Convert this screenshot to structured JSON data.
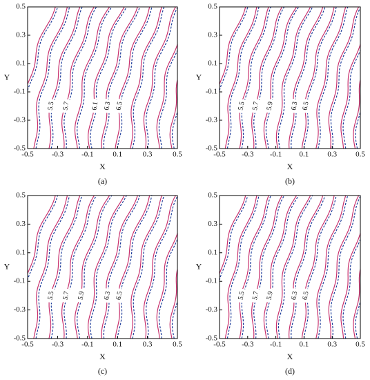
{
  "chart_data": [
    {
      "type": "contour",
      "caption": "(a)",
      "xlabel": "X",
      "ylabel": "Y",
      "xlim": [
        -0.5,
        0.5
      ],
      "ylim": [
        -0.5,
        0.5
      ],
      "xticks": [
        -0.5,
        -0.3,
        -0.1,
        0.1,
        0.3,
        0.5
      ],
      "yticks": [
        -0.5,
        -0.3,
        -0.1,
        0.1,
        0.3,
        0.5
      ],
      "series": [
        {
          "color": "#c8326e",
          "style": "solid",
          "levels": [
            5.1,
            5.3,
            5.5,
            5.7,
            5.9,
            6.1,
            6.3,
            6.5,
            6.7,
            6.9,
            7.1,
            7.3
          ]
        },
        {
          "color": "#1e3c9a",
          "style": "dashed",
          "levels": [
            5.1,
            5.3,
            5.5,
            5.7,
            5.9,
            6.1,
            6.3,
            6.5,
            6.7,
            6.9,
            7.1,
            7.3
          ]
        }
      ],
      "contour_labels": [
        5.5,
        5.7,
        6.1,
        6.3,
        6.5
      ]
    },
    {
      "type": "contour",
      "caption": "(b)",
      "xlabel": "X",
      "ylabel": "Y",
      "xlim": [
        -0.5,
        0.5
      ],
      "ylim": [
        -0.5,
        0.5
      ],
      "xticks": [
        -0.5,
        -0.3,
        -0.1,
        0.1,
        0.3,
        0.5
      ],
      "yticks": [
        -0.5,
        -0.3,
        -0.1,
        0.1,
        0.3,
        0.5
      ],
      "series": [
        {
          "color": "#c8326e",
          "style": "solid",
          "levels": [
            5.1,
            5.3,
            5.5,
            5.7,
            5.9,
            6.1,
            6.3,
            6.5,
            6.7,
            6.9,
            7.1,
            7.3
          ]
        },
        {
          "color": "#1e3c9a",
          "style": "dashed",
          "levels": [
            5.1,
            5.3,
            5.5,
            5.7,
            5.9,
            6.1,
            6.3,
            6.5,
            6.7,
            6.9,
            7.1,
            7.3
          ]
        }
      ],
      "contour_labels": [
        5.5,
        5.7,
        5.9,
        6.3,
        6.5
      ]
    },
    {
      "type": "contour",
      "caption": "(c)",
      "xlabel": "X",
      "ylabel": "Y",
      "xlim": [
        -0.5,
        0.5
      ],
      "ylim": [
        -0.5,
        0.5
      ],
      "xticks": [
        -0.5,
        -0.3,
        -0.1,
        0.1,
        0.3,
        0.5
      ],
      "yticks": [
        -0.5,
        -0.3,
        -0.1,
        0.1,
        0.3,
        0.5
      ],
      "series": [
        {
          "color": "#c8326e",
          "style": "solid",
          "levels": [
            5.1,
            5.3,
            5.5,
            5.7,
            5.9,
            6.1,
            6.3,
            6.5,
            6.7,
            6.9,
            7.1,
            7.3
          ]
        },
        {
          "color": "#1e3c9a",
          "style": "dashed",
          "levels": [
            5.1,
            5.3,
            5.5,
            5.7,
            5.9,
            6.1,
            6.3,
            6.5,
            6.7,
            6.9,
            7.1,
            7.3
          ]
        }
      ],
      "contour_labels": [
        5.5,
        5.7,
        5.9,
        6.3,
        6.5
      ]
    },
    {
      "type": "contour",
      "caption": "(d)",
      "xlabel": "X",
      "ylabel": "Y",
      "xlim": [
        -0.5,
        0.5
      ],
      "ylim": [
        -0.5,
        0.5
      ],
      "xticks": [
        -0.5,
        -0.3,
        -0.1,
        0.1,
        0.3,
        0.5
      ],
      "yticks": [
        -0.5,
        -0.3,
        -0.1,
        0.1,
        0.3,
        0.5
      ],
      "series": [
        {
          "color": "#c8326e",
          "style": "solid",
          "levels": [
            5.1,
            5.3,
            5.5,
            5.7,
            5.9,
            6.1,
            6.3,
            6.5,
            6.7,
            6.9,
            7.1,
            7.3
          ]
        },
        {
          "color": "#1e3c9a",
          "style": "dashed",
          "levels": [
            5.1,
            5.3,
            5.5,
            5.7,
            5.9,
            6.1,
            6.3,
            6.5,
            6.7,
            6.9,
            7.1,
            7.3
          ]
        }
      ],
      "contour_labels": [
        5.5,
        5.7,
        5.9,
        6.3,
        6.5
      ]
    }
  ]
}
